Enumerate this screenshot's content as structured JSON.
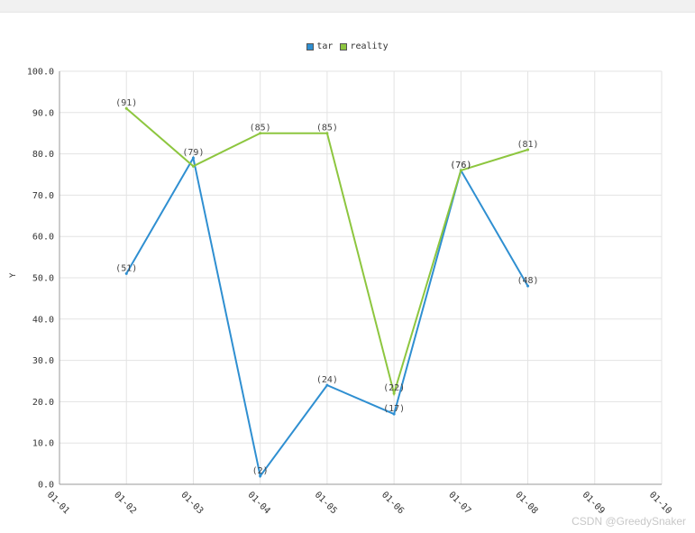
{
  "chart_data": {
    "type": "line",
    "categories": [
      "01-01",
      "01-02",
      "01-03",
      "01-04",
      "01-05",
      "01-06",
      "01-07",
      "01-08",
      "01-09",
      "01-10"
    ],
    "ylabel": "Y",
    "ylim": [
      0,
      100
    ],
    "yticks": [
      "0.0",
      "10.0",
      "20.0",
      "30.0",
      "40.0",
      "50.0",
      "60.0",
      "70.0",
      "80.0",
      "90.0",
      "100.0"
    ],
    "grid": true,
    "legend_position": "top-center",
    "series": [
      {
        "name": "tar",
        "color": "#2f8fd1",
        "values": [
          null,
          51,
          79,
          2,
          24,
          17,
          76,
          48,
          null,
          null
        ]
      },
      {
        "name": "reality",
        "color": "#8dc63f",
        "values": [
          null,
          91,
          77,
          85,
          85,
          22,
          76,
          81,
          null,
          null
        ]
      }
    ],
    "data_labels": {
      "tar": [
        "",
        "(51)",
        "(79)",
        "(2)",
        "(24)",
        "(17)",
        "(76)",
        "(48)",
        "",
        ""
      ],
      "reality": [
        "",
        "(91)",
        "",
        "(85)",
        "(85)",
        "(22)",
        "(76)",
        "(81)",
        "",
        ""
      ]
    }
  },
  "watermark": "CSDN @GreedySnaker"
}
